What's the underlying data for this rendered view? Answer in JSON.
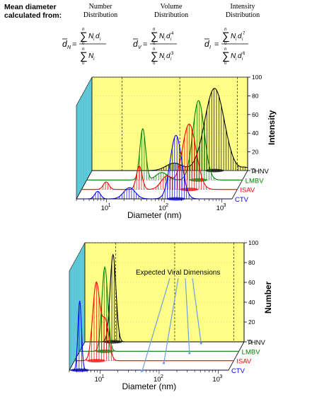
{
  "header": {
    "mean_label_line1": "Mean diameter",
    "mean_label_line2": "calculated from:",
    "columns": [
      {
        "line1": "Number",
        "line2": "Distribution",
        "lhs": "d",
        "sub": "N",
        "num_pow": "",
        "den_pow": ""
      },
      {
        "line1": "Volume",
        "line2": "Distribution",
        "lhs": "d",
        "sub": "V",
        "num_pow": "4",
        "den_pow": "3"
      },
      {
        "line1": "Intensity",
        "line2": "Distribution",
        "lhs": "d",
        "sub": "I",
        "num_pow": "7",
        "den_pow": "6"
      }
    ],
    "sum_top": "n",
    "sum_bottom": "0",
    "term": "N",
    "term_sub": "i",
    "d_term": "d"
  },
  "colors": {
    "back_wall": "#ffff88",
    "side_wall": "#66d0e0",
    "THNV": "#000000",
    "LMBV": "#008000",
    "ISAV": "#ff0000",
    "CTV": "#0000ff",
    "arrow": "#6fa0d8"
  },
  "chart_data": [
    {
      "type": "line",
      "style": "3d-waterfall",
      "x_scale": "log",
      "xlabel": "Diameter (nm)",
      "ylabel": "Intensity",
      "xlim": [
        3,
        1500
      ],
      "ylim": [
        0,
        100
      ],
      "x_ticks": [
        {
          "base": "10",
          "exp": "1",
          "v": 10
        },
        {
          "base": "10",
          "exp": "2",
          "v": 100
        },
        {
          "base": "10",
          "exp": "3",
          "v": 1000
        }
      ],
      "y_ticks": [
        "0",
        "20",
        "40",
        "60",
        "80",
        "100"
      ],
      "series": [
        {
          "name": "THNV",
          "peaks": [
            {
              "center": 400,
              "width": 0.17,
              "height": 88
            },
            {
              "center": 80,
              "width": 0.14,
              "height": 8
            },
            {
              "center": 1400,
              "width": 0.08,
              "height": 3
            }
          ]
        },
        {
          "name": "LMBV",
          "peaks": [
            {
              "center": 260,
              "width": 0.1,
              "height": 85
            },
            {
              "center": 28,
              "width": 0.05,
              "height": 55
            },
            {
              "center": 60,
              "width": 0.1,
              "height": 8
            }
          ]
        },
        {
          "name": "ISAV",
          "peaks": [
            {
              "center": 220,
              "width": 0.12,
              "height": 70
            },
            {
              "center": 30,
              "width": 0.05,
              "height": 25
            },
            {
              "center": 90,
              "width": 0.1,
              "height": 14
            },
            {
              "center": 8,
              "width": 0.05,
              "height": 8
            }
          ]
        },
        {
          "name": "CTV",
          "peaks": [
            {
              "center": 160,
              "width": 0.1,
              "height": 68
            },
            {
              "center": 25,
              "width": 0.1,
              "height": 12
            },
            {
              "center": 7,
              "width": 0.05,
              "height": 8
            }
          ]
        }
      ]
    },
    {
      "type": "line",
      "style": "3d-waterfall",
      "x_scale": "log",
      "xlabel": "Diameter (nm)",
      "ylabel": "Number",
      "xlim": [
        3,
        1500
      ],
      "ylim": [
        0,
        100
      ],
      "annotation": "Expected Viral Dimensions",
      "x_ticks": [
        {
          "base": "10",
          "exp": "1",
          "v": 10
        },
        {
          "base": "10",
          "exp": "2",
          "v": 100
        },
        {
          "base": "10",
          "exp": "3",
          "v": 1000
        }
      ],
      "y_ticks": [
        "0",
        "20",
        "40",
        "60",
        "80",
        "100"
      ],
      "series": [
        {
          "name": "THNV",
          "peaks": [
            {
              "center": 9,
              "width": 0.05,
              "height": 88
            }
          ]
        },
        {
          "name": "LMBV",
          "peaks": [
            {
              "center": 8,
              "width": 0.05,
              "height": 85
            }
          ]
        },
        {
          "name": "ISAV",
          "peaks": [
            {
              "center": 7,
              "width": 0.06,
              "height": 78
            },
            {
              "center": 10,
              "width": 0.06,
              "height": 40
            }
          ]
        },
        {
          "name": "CTV",
          "peaks": [
            {
              "center": 4.5,
              "width": 0.03,
              "height": 70
            }
          ]
        }
      ]
    }
  ]
}
